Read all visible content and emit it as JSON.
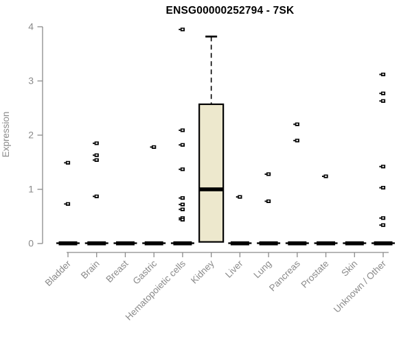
{
  "window": {
    "background": "#ffffff"
  },
  "chart_data": {
    "type": "boxplot",
    "title": "ENSG00000252794 - 7SK",
    "xlabel": "",
    "ylabel": "Expression",
    "ylim": [
      0,
      4
    ],
    "yticks": [
      0,
      1,
      2,
      3,
      4
    ],
    "grid": false,
    "legend": false,
    "categories": [
      "Bladder",
      "Brain",
      "Breast",
      "Gastric",
      "Hematopoietic cells",
      "Kidney",
      "Liver",
      "Lung",
      "Pancreas",
      "Prostate",
      "Skin",
      "Unknown / Other"
    ],
    "groups": [
      {
        "category": "Bladder",
        "box": {
          "q1": 0,
          "median": 0,
          "q3": 0,
          "whisker_low": 0,
          "whisker_high": 0
        },
        "points": [
          1.49,
          0.73
        ]
      },
      {
        "category": "Brain",
        "box": {
          "q1": 0,
          "median": 0,
          "q3": 0,
          "whisker_low": 0,
          "whisker_high": 0
        },
        "points": [
          1.85,
          1.63,
          1.54,
          0.87
        ]
      },
      {
        "category": "Breast",
        "box": {
          "q1": 0,
          "median": 0,
          "q3": 0,
          "whisker_low": 0,
          "whisker_high": 0
        },
        "points": []
      },
      {
        "category": "Gastric",
        "box": {
          "q1": 0,
          "median": 0,
          "q3": 0,
          "whisker_low": 0,
          "whisker_high": 0
        },
        "points": [
          1.78
        ]
      },
      {
        "category": "Hematopoietic cells",
        "box": {
          "q1": 0,
          "median": 0,
          "q3": 0,
          "whisker_low": 0,
          "whisker_high": 0
        },
        "points": [
          3.95,
          2.09,
          1.82,
          1.37,
          0.84,
          0.72,
          0.63,
          0.47,
          0.44
        ]
      },
      {
        "category": "Kidney",
        "box": {
          "q1": 0.03,
          "median": 1.0,
          "q3": 2.57,
          "whisker_low": 0,
          "whisker_high": 3.82
        },
        "points": []
      },
      {
        "category": "Liver",
        "box": {
          "q1": 0,
          "median": 0,
          "q3": 0,
          "whisker_low": 0,
          "whisker_high": 0
        },
        "points": [
          0.86
        ]
      },
      {
        "category": "Lung",
        "box": {
          "q1": 0,
          "median": 0,
          "q3": 0,
          "whisker_low": 0,
          "whisker_high": 0
        },
        "points": [
          1.28,
          0.78
        ]
      },
      {
        "category": "Pancreas",
        "box": {
          "q1": 0,
          "median": 0,
          "q3": 0,
          "whisker_low": 0,
          "whisker_high": 0
        },
        "points": [
          2.2,
          1.9
        ]
      },
      {
        "category": "Prostate",
        "box": {
          "q1": 0,
          "median": 0,
          "q3": 0,
          "whisker_low": 0,
          "whisker_high": 0
        },
        "points": [
          1.24
        ]
      },
      {
        "category": "Skin",
        "box": {
          "q1": 0,
          "median": 0,
          "q3": 0,
          "whisker_low": 0,
          "whisker_high": 0
        },
        "points": []
      },
      {
        "category": "Unknown / Other",
        "box": {
          "q1": 0,
          "median": 0,
          "q3": 0,
          "whisker_low": 0,
          "whisker_high": 0
        },
        "points": [
          3.12,
          2.77,
          2.63,
          1.42,
          1.03,
          0.47,
          0.34
        ]
      }
    ],
    "colors": {
      "box_fill": "#EDE8CD",
      "box_border": "#000000",
      "median": "#000000",
      "point": "#000000",
      "axis": "#8a8a8a",
      "tick_label": "#8a8a8a",
      "title": "#000000"
    }
  }
}
